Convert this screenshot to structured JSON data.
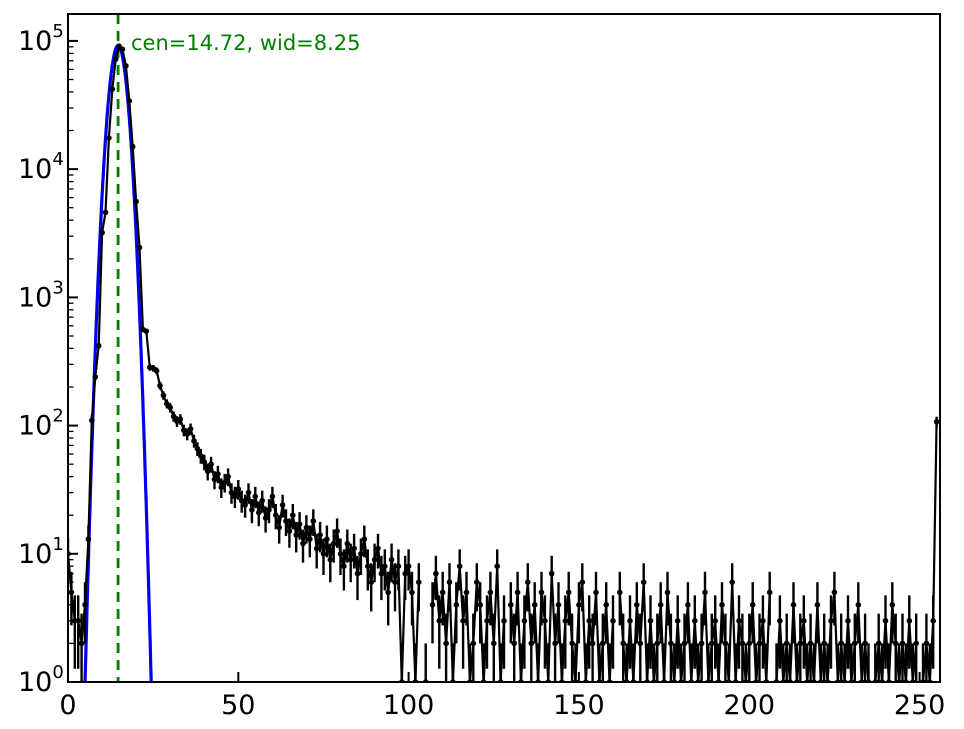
{
  "figure": {
    "background": "#ffffff"
  },
  "chart_data": {
    "type": "line",
    "subtype": "histogram-with-errorbars",
    "title": "",
    "xlabel": "",
    "ylabel": "",
    "yscale": "log",
    "grid": false,
    "legend": "none",
    "xlim": [
      0,
      256
    ],
    "ylim": [
      1,
      162000
    ],
    "ylog_exp_range": [
      0,
      5.21
    ],
    "x_ticks": [
      0,
      50,
      100,
      150,
      200,
      250
    ],
    "y_tick_exponents": [
      0,
      1,
      2,
      3,
      4,
      5
    ],
    "annotation": "cen=14.72, wid=8.25",
    "fit": {
      "cen": 14.72,
      "wid": 8.25,
      "amplitude": 92000,
      "sigma_plot": 2.03
    },
    "colors": {
      "data": "#000000",
      "fit_curve": "#0000ee",
      "center_line": "#008000",
      "annotation": "#008000",
      "axes": "#000000"
    },
    "series": [
      {
        "name": "pixel-value-histogram",
        "marker": "circle",
        "errors": "sqrt(n)",
        "x_start": 0,
        "x_step": 1,
        "counts": [
          10,
          5,
          3,
          3,
          2,
          4,
          13,
          110,
          240,
          420,
          3200,
          4600,
          17500,
          42000,
          72000,
          91000,
          86000,
          64000,
          34000,
          15000,
          5600,
          2450,
          560,
          545,
          285,
          280,
          268,
          205,
          172,
          148,
          138,
          118,
          108,
          112,
          92,
          86,
          94,
          76,
          66,
          58,
          52,
          44,
          50,
          38,
          42,
          33,
          36,
          40,
          30,
          28,
          32,
          26,
          24,
          30,
          22,
          28,
          21,
          26,
          19,
          22,
          28,
          20,
          16,
          24,
          18,
          15,
          20,
          14,
          17,
          12,
          16,
          13,
          18,
          11,
          14,
          10,
          13,
          9,
          12,
          15,
          10,
          8,
          12,
          9,
          11,
          7,
          10,
          13,
          8,
          6,
          9,
          11,
          7,
          8,
          5,
          9,
          6,
          8,
          1,
          7,
          8,
          5,
          1,
          6,
          0,
          1,
          0,
          4,
          7,
          3,
          5,
          2,
          6,
          1,
          4,
          8,
          3,
          5,
          1,
          2,
          6,
          4,
          1,
          3,
          5,
          2,
          8,
          1,
          3,
          0,
          4,
          2,
          5,
          1,
          3,
          6,
          2,
          4,
          1,
          5,
          3,
          1,
          7,
          2,
          4,
          1,
          3,
          5,
          2,
          1,
          4,
          6,
          1,
          3,
          2,
          5,
          1,
          2,
          4,
          1,
          3,
          0,
          5,
          2,
          1,
          3,
          1,
          4,
          2,
          6,
          1,
          3,
          1,
          2,
          4,
          1,
          5,
          2,
          1,
          3,
          1,
          2,
          4,
          1,
          3,
          1,
          2,
          5,
          1,
          2,
          3,
          1,
          4,
          2,
          1,
          6,
          1,
          3,
          2,
          1,
          2,
          4,
          1,
          2,
          3,
          1,
          5,
          0,
          1,
          3,
          1,
          2,
          1,
          4,
          1,
          2,
          3,
          1,
          2,
          1,
          4,
          1,
          2,
          1,
          3,
          5,
          1,
          2,
          1,
          3,
          1,
          2,
          4,
          1,
          2,
          1,
          0,
          1,
          2,
          1,
          3,
          1,
          4,
          2,
          1,
          2,
          1,
          3,
          1,
          2,
          0,
          1,
          2,
          1,
          3,
          107
        ]
      },
      {
        "name": "gaussian-fit-curve",
        "style": "solid"
      },
      {
        "name": "fit-center-line",
        "x": 14.72,
        "style": "dashed"
      }
    ]
  }
}
